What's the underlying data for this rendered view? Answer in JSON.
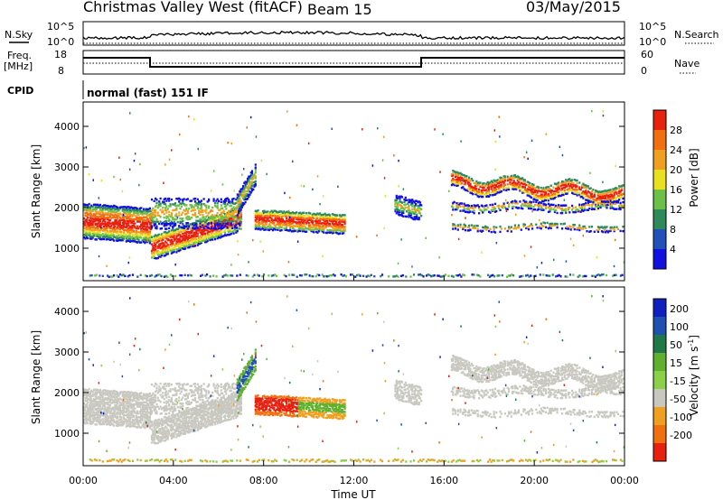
{
  "header": {
    "title": "Christmas Valley West (fitACF)",
    "beam": "Beam 15",
    "date": "03/May/2015"
  },
  "nsky_panel": {
    "left_label": "N.Sky",
    "right_label": "N.Search",
    "left_ticks": [
      "10^5",
      "10^0"
    ],
    "right_ticks": [
      "10^5",
      "10^0"
    ]
  },
  "freq_panel": {
    "left_label_1": "Freq.",
    "left_label_2": "[MHz]",
    "left_ticks": [
      "18",
      "8"
    ],
    "right_label": "Nave",
    "right_ticks": [
      "60",
      "0"
    ]
  },
  "cpid": {
    "label": "CPID",
    "mode": "normal (fast) 151 IF"
  },
  "chart_data": [
    {
      "type": "heatmap",
      "name": "power",
      "ylabel": "Slant Range [km]",
      "ylim": [
        200,
        4600
      ],
      "yticks": [
        "1000",
        "2000",
        "3000",
        "4000"
      ],
      "colorbar_label": "Power [dB]",
      "colorbar_ticks": [
        "4",
        "8",
        "12",
        "16",
        "20",
        "24",
        "28"
      ],
      "colors": [
        "#1010e0",
        "#2050b8",
        "#2e8a5a",
        "#6cc048",
        "#e8e020",
        "#f0a020",
        "#f07010",
        "#e82010"
      ]
    },
    {
      "type": "heatmap",
      "name": "velocity",
      "ylabel": "Slant Range [km]",
      "ylim": [
        200,
        4600
      ],
      "yticks": [
        "1000",
        "2000",
        "3000",
        "4000"
      ],
      "colorbar_label": "Velocity [m s",
      "colorbar_label_sup": "-1",
      "colorbar_label_end": "]",
      "colorbar_ticks": [
        "200",
        "100",
        "50",
        "15",
        "-15",
        "-50",
        "-100",
        "-200"
      ],
      "colors": [
        "#1020c0",
        "#2050b0",
        "#1e7848",
        "#60b030",
        "#8ad048",
        "#c8c8c0",
        "#f0a020",
        "#f07010",
        "#e82010"
      ]
    }
  ],
  "time_axis": {
    "label": "Time UT",
    "ticks": [
      "00:00",
      "04:00",
      "08:00",
      "12:00",
      "16:00",
      "20:00",
      "00:00"
    ]
  }
}
